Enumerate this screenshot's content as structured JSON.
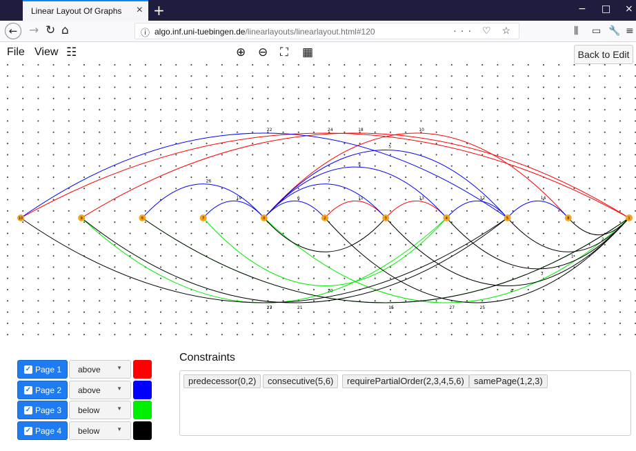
{
  "browser": {
    "tab_title": "Linear Layout Of Graphs",
    "tab_close": "×",
    "new_tab": "+",
    "url_host": "algo.inf.uni-tuebingen.de",
    "url_path": "/linearlayouts/linearlayout.html#120",
    "url_icons": "··· ♡ ☆",
    "win_min": "−",
    "win_max": "□",
    "win_close": "×"
  },
  "menu": {
    "file": "File",
    "view": "View",
    "back_to_edit": "Back to Edit"
  },
  "graph": {
    "vertices": [
      {
        "id": "10",
        "order": 0
      },
      {
        "id": "9",
        "order": 1
      },
      {
        "id": "6",
        "order": 2
      },
      {
        "id": "7",
        "order": 3
      },
      {
        "id": "0",
        "order": 4
      },
      {
        "id": "2",
        "order": 5
      },
      {
        "id": "3",
        "order": 6
      },
      {
        "id": "4",
        "order": 7
      },
      {
        "id": "5",
        "order": 8
      },
      {
        "id": "8",
        "order": 9
      },
      {
        "id": "1",
        "order": 10
      }
    ],
    "vertex_color": "#f5a31a",
    "page_colors": {
      "1": "#ff0000",
      "2": "#0000ff",
      "3": "#00ee00",
      "4": "#000000"
    },
    "edges": [
      {
        "from": 0,
        "to": 10,
        "page": 1,
        "label": "24"
      },
      {
        "from": 1,
        "to": 10,
        "page": 1,
        "label": "18"
      },
      {
        "from": 4,
        "to": 9,
        "page": 1,
        "label": "10"
      },
      {
        "from": 5,
        "to": 6,
        "page": 1,
        "label": "11"
      },
      {
        "from": 6,
        "to": 7,
        "page": 1,
        "label": "13"
      },
      {
        "from": 0,
        "to": 8,
        "page": 2,
        "label": "22"
      },
      {
        "from": 2,
        "to": 4,
        "page": 2,
        "label": "26"
      },
      {
        "from": 3,
        "to": 4,
        "page": 2,
        "label": "19"
      },
      {
        "from": 4,
        "to": 8,
        "page": 2,
        "label": "5"
      },
      {
        "from": 4,
        "to": 7,
        "page": 2,
        "label": "8"
      },
      {
        "from": 4,
        "to": 6,
        "page": 2,
        "label": "7"
      },
      {
        "from": 4,
        "to": 5,
        "page": 2,
        "label": "6"
      },
      {
        "from": 7,
        "to": 8,
        "page": 2,
        "label": "12"
      },
      {
        "from": 8,
        "to": 9,
        "page": 2,
        "label": "14"
      },
      {
        "from": 1,
        "to": 7,
        "page": 3,
        "label": "17"
      },
      {
        "from": 3,
        "to": 7,
        "page": 3,
        "label": "20"
      },
      {
        "from": 4,
        "to": 10,
        "page": 3,
        "label": "27"
      },
      {
        "from": 2,
        "to": 10,
        "page": 3,
        "label": "16"
      },
      {
        "from": 0,
        "to": 8,
        "page": 4,
        "label": "23"
      },
      {
        "from": 1,
        "to": 8,
        "page": 4,
        "label": "21"
      },
      {
        "from": 4,
        "to": 6,
        "page": 4,
        "label": "9"
      },
      {
        "from": 6,
        "to": 10,
        "page": 4,
        "label": "4"
      },
      {
        "from": 7,
        "to": 10,
        "page": 4,
        "label": "3"
      },
      {
        "from": 5,
        "to": 10,
        "page": 4,
        "label": "25"
      },
      {
        "from": 8,
        "to": 10,
        "page": 4,
        "label": "1"
      },
      {
        "from": 9,
        "to": 10,
        "page": 4,
        "label": "2"
      },
      {
        "from": 2,
        "to": 10,
        "page": 4,
        "label": "15"
      }
    ]
  },
  "constraints": {
    "title": "Constraints",
    "items": [
      "predecessor(0,2)",
      "consecutive(5,6)",
      "requirePartialOrder(2,3,4,5,6)",
      "samePage(1,2,3)"
    ]
  },
  "pages": [
    {
      "label": "Page 1",
      "checked": "✓",
      "position": "above",
      "color": "#ff0000"
    },
    {
      "label": "Page 2",
      "checked": "✓",
      "position": "above",
      "color": "#0000ff"
    },
    {
      "label": "Page 3",
      "checked": "✓",
      "position": "below",
      "color": "#00ee00"
    },
    {
      "label": "Page 4",
      "checked": "✓",
      "position": "below",
      "color": "#000000"
    }
  ]
}
